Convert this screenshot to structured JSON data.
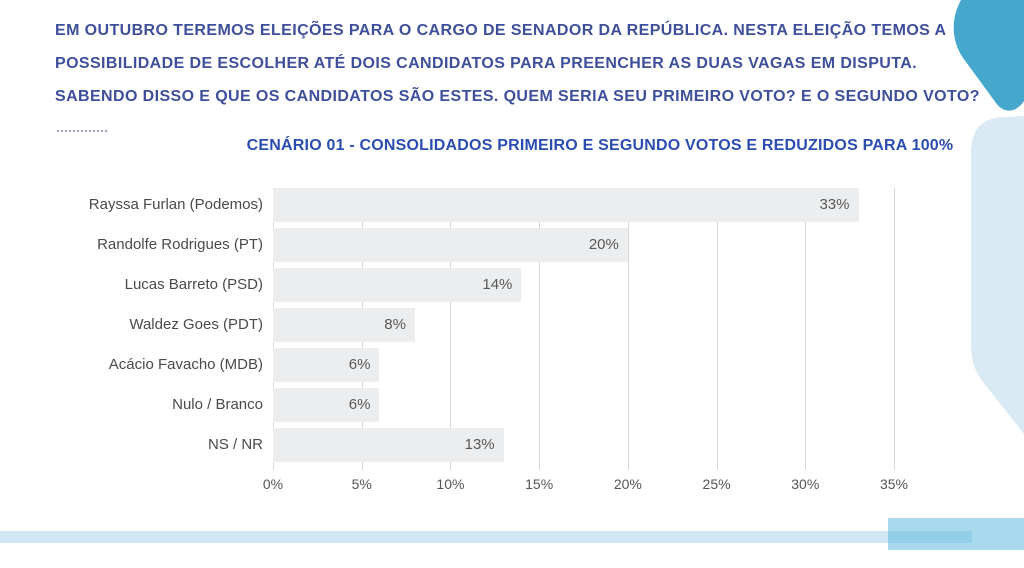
{
  "intro": {
    "line1": "EM OUTUBRO TEREMOS ELEIÇÕES PARA O CARGO DE SENADOR DA REPÚBLICA. NESTA ELEIÇÃO TEMOS A",
    "line2": "POSSIBILIDADE DE ESCOLHER ATÉ DOIS CANDIDATOS PARA PREENCHER AS DUAS VAGAS EM DISPUTA.",
    "line3": "SABENDO DISSO E QUE OS CANDIDATOS SÃO ESTES. QUEM SERIA SEU PRIMEIRO VOTO? E O SEGUNDO VOTO?"
  },
  "chart_data": {
    "type": "bar",
    "orientation": "horizontal",
    "title": "CENÁRIO 01 - CONSOLIDADOS PRIMEIRO E SEGUNDO VOTOS E REDUZIDOS PARA 100%",
    "categories": [
      "Rayssa Furlan (Podemos)",
      "Randolfe Rodrigues (PT)",
      "Lucas Barreto (PSD)",
      "Waldez Goes (PDT)",
      "Acácio Favacho (MDB)",
      "Nulo / Branco",
      "NS / NR"
    ],
    "values": [
      33,
      20,
      14,
      8,
      6,
      6,
      13
    ],
    "value_labels": [
      "33%",
      "20%",
      "14%",
      "8%",
      "6%",
      "6%",
      "13%"
    ],
    "x_ticks": [
      "0%",
      "5%",
      "10%",
      "15%",
      "20%",
      "25%",
      "30%",
      "35%"
    ],
    "xlim": [
      0,
      35
    ],
    "grid": true,
    "legend": "none"
  },
  "colors": {
    "intro_text": "#3e4f9b",
    "title_text": "#2b4db1",
    "bar_fill": "#ebedef",
    "grid_line": "#d7d7d7",
    "label_text": "#4a4a4a",
    "value_text": "#595959",
    "axis_text": "#555555",
    "decor_teal": "#46a7cd",
    "decor_light": "#d9eaf4",
    "decor_bottom_rect": "#a9d9ec",
    "decor_bottom_bar": "#cfe7f3",
    "decor_bottom_overlap": "#90cfe7"
  }
}
